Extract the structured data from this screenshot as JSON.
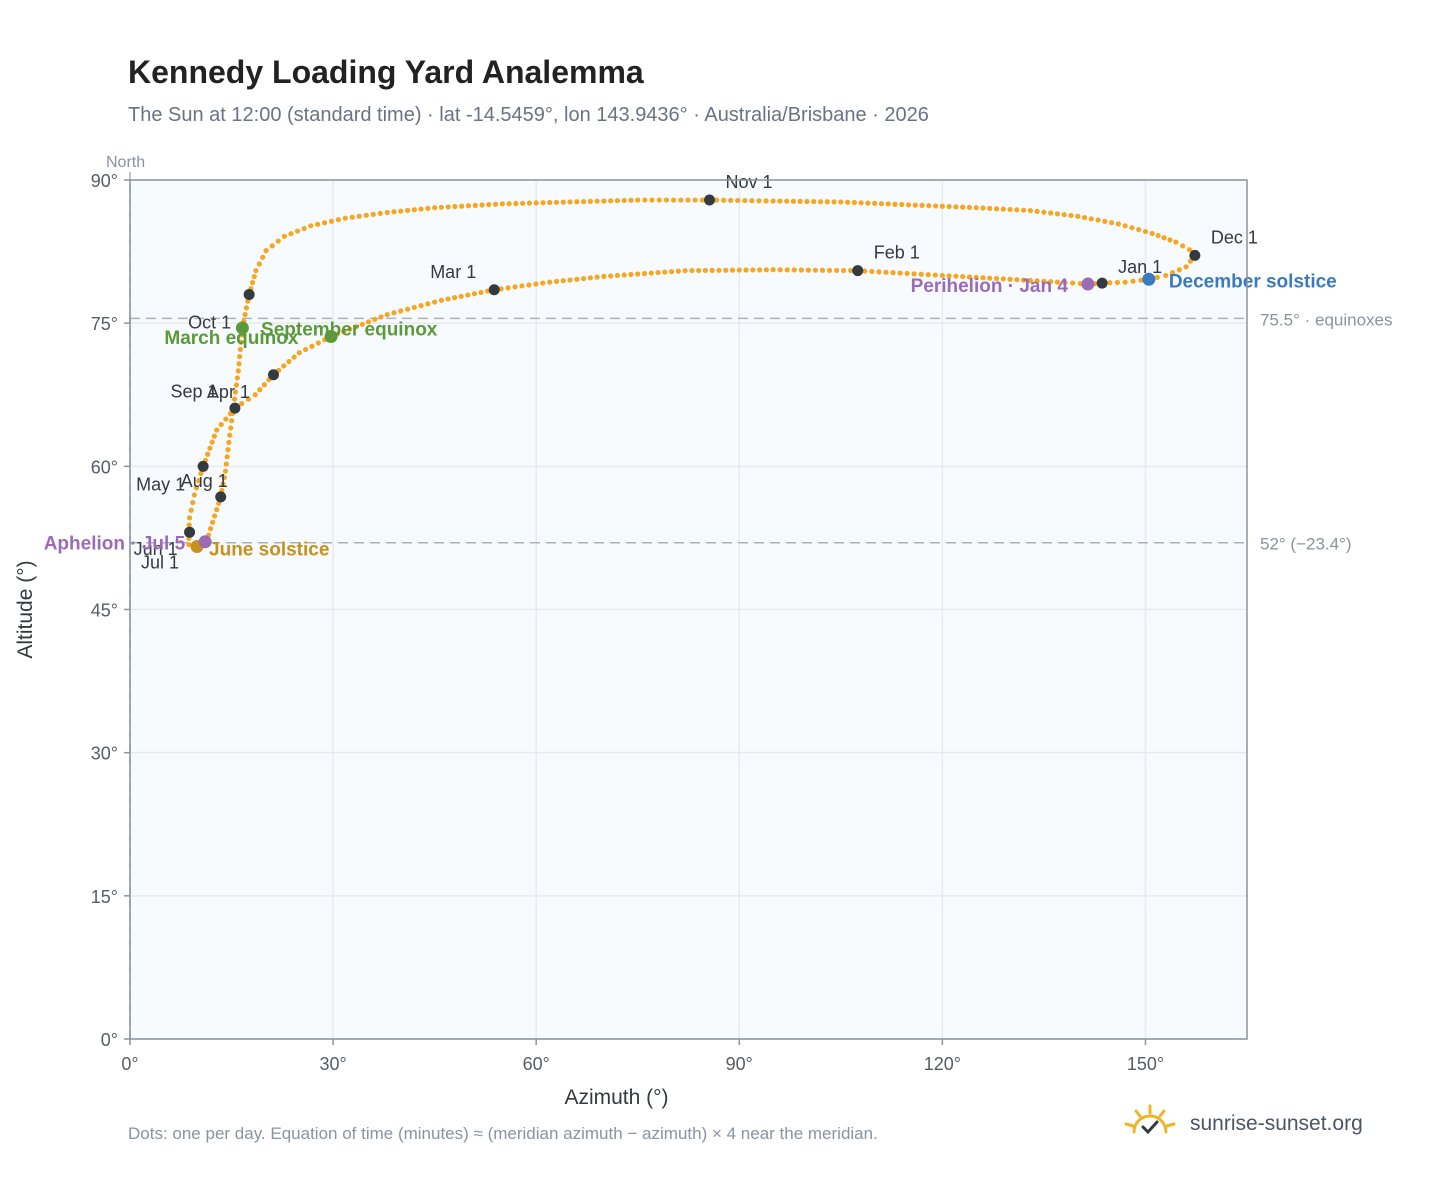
{
  "header": {
    "title": "Kennedy Loading Yard Analemma",
    "subtitle": "The Sun at 12:00 (standard time) · lat -14.5459°, lon 143.9436° · Australia/Brisbane · 2026"
  },
  "footer": {
    "note": "Dots: one per day. Equation of time (minutes) ≈ (meridian azimuth − azimuth) × 4 near the meridian.",
    "brand": "sunrise-sunset.org"
  },
  "colors": {
    "curve": "#f5a623",
    "month_marker": "#333a40",
    "equinox": "#5a9a3a",
    "june_solstice": "#c8901c",
    "december_solstice": "#3a7abf",
    "apsis": "#9b6bb8",
    "grid": "#e6ebf0",
    "plot_bg": "#f8fbfe",
    "reference_line": "#aab4be"
  },
  "chart_data": {
    "type": "scatter",
    "xlabel": "Azimuth (°)",
    "ylabel": "Altitude (°)",
    "xlim": [
      0,
      165
    ],
    "ylim": [
      0,
      90
    ],
    "x_ticks": [
      0,
      30,
      60,
      90,
      120,
      150
    ],
    "x_tick_labels": [
      "0°",
      "30°",
      "60°",
      "90°",
      "120°",
      "150°"
    ],
    "y_ticks": [
      0,
      15,
      30,
      45,
      60,
      75,
      90
    ],
    "y_tick_labels": [
      "0°",
      "15°",
      "30°",
      "45°",
      "60°",
      "75°",
      "90°"
    ],
    "grid": true,
    "north_label": "North",
    "north_azimuth": 0,
    "reference_lines": [
      {
        "altitude": 75.5,
        "label": "75.5° · equinoxes"
      },
      {
        "altitude": 52,
        "label": "52° (−23.4°)"
      }
    ],
    "path": [
      [
        8.7,
        51.8
      ],
      [
        9.7,
        51.7
      ],
      [
        10.7,
        52.0
      ],
      [
        11.6,
        52.8
      ],
      [
        12.5,
        54.8
      ],
      [
        13.4,
        56.8
      ],
      [
        14.1,
        59.5
      ],
      [
        14.6,
        62.5
      ],
      [
        15.3,
        66.3
      ],
      [
        16.0,
        70.0
      ],
      [
        16.6,
        74.5
      ],
      [
        17.6,
        78.0
      ],
      [
        18.6,
        80.5
      ],
      [
        20.1,
        82.6
      ],
      [
        22.8,
        84.1
      ],
      [
        26.7,
        85.2
      ],
      [
        31.8,
        86.0
      ],
      [
        38.0,
        86.6
      ],
      [
        45.0,
        87.1
      ],
      [
        55.0,
        87.5
      ],
      [
        65.0,
        87.7
      ],
      [
        75.0,
        87.9
      ],
      [
        85.6,
        87.9
      ],
      [
        95.0,
        87.8
      ],
      [
        105.0,
        87.7
      ],
      [
        115.0,
        87.4
      ],
      [
        125.0,
        87.1
      ],
      [
        133.0,
        86.8
      ],
      [
        140.0,
        86.2
      ],
      [
        146.0,
        85.4
      ],
      [
        151.0,
        84.4
      ],
      [
        154.5,
        83.5
      ],
      [
        156.5,
        82.7
      ],
      [
        157.3,
        82.1
      ],
      [
        156.0,
        80.9
      ],
      [
        153.0,
        80.0
      ],
      [
        150.5,
        79.6
      ],
      [
        147.0,
        79.3
      ],
      [
        143.6,
        79.2
      ],
      [
        141.5,
        79.1
      ],
      [
        137.0,
        79.3
      ],
      [
        130.0,
        79.6
      ],
      [
        120.0,
        80.0
      ],
      [
        107.5,
        80.5
      ],
      [
        95.0,
        80.6
      ],
      [
        82.0,
        80.5
      ],
      [
        70.0,
        79.9
      ],
      [
        62.0,
        79.3
      ],
      [
        53.8,
        78.5
      ],
      [
        46.0,
        77.4
      ],
      [
        38.0,
        75.9
      ],
      [
        29.7,
        73.6
      ],
      [
        25.0,
        71.9
      ],
      [
        21.2,
        69.6
      ],
      [
        18.5,
        67.5
      ],
      [
        15.5,
        66.1
      ],
      [
        12.8,
        63.8
      ],
      [
        10.8,
        60.0
      ],
      [
        9.5,
        57.0
      ],
      [
        8.8,
        54.6
      ],
      [
        8.7,
        53.1
      ],
      [
        8.7,
        51.8
      ]
    ],
    "month_markers": [
      {
        "label": "Jan 1",
        "az": 143.6,
        "alt": 79.2
      },
      {
        "label": "Feb 1",
        "az": 107.5,
        "alt": 80.5
      },
      {
        "label": "Mar 1",
        "az": 53.8,
        "alt": 78.5
      },
      {
        "label": "Apr 1",
        "az": 15.5,
        "alt": 66.1
      },
      {
        "label": "May 1",
        "az": 10.8,
        "alt": 60.0
      },
      {
        "label": "Jun 1",
        "az": 8.8,
        "alt": 53.1
      },
      {
        "label": "Jul 1",
        "az": 9.9,
        "alt": 51.6
      },
      {
        "label": "Aug 1",
        "az": 13.4,
        "alt": 56.8
      },
      {
        "label": "Sep 1",
        "az": 21.2,
        "alt": 69.6
      },
      {
        "label": "Oct 1",
        "az": 17.6,
        "alt": 78.0
      },
      {
        "label": "Nov 1",
        "az": 85.6,
        "alt": 87.9
      },
      {
        "label": "Dec 1",
        "az": 157.3,
        "alt": 82.1
      }
    ],
    "special_points": [
      {
        "label": "March equinox",
        "az": 16.6,
        "alt": 74.5,
        "kind": "equinox"
      },
      {
        "label": "September equinox",
        "az": 29.7,
        "alt": 73.6,
        "kind": "equinox"
      },
      {
        "label": "June solstice",
        "az": 9.9,
        "alt": 51.6,
        "kind": "june_solstice"
      },
      {
        "label": "December solstice",
        "az": 150.5,
        "alt": 79.6,
        "kind": "december_solstice"
      },
      {
        "label": "Aphelion · Jul 5",
        "az": 11.1,
        "alt": 52.1,
        "kind": "apsis"
      },
      {
        "label": "Perihelion · Jan 4",
        "az": 141.5,
        "alt": 79.1,
        "kind": "apsis"
      }
    ]
  }
}
